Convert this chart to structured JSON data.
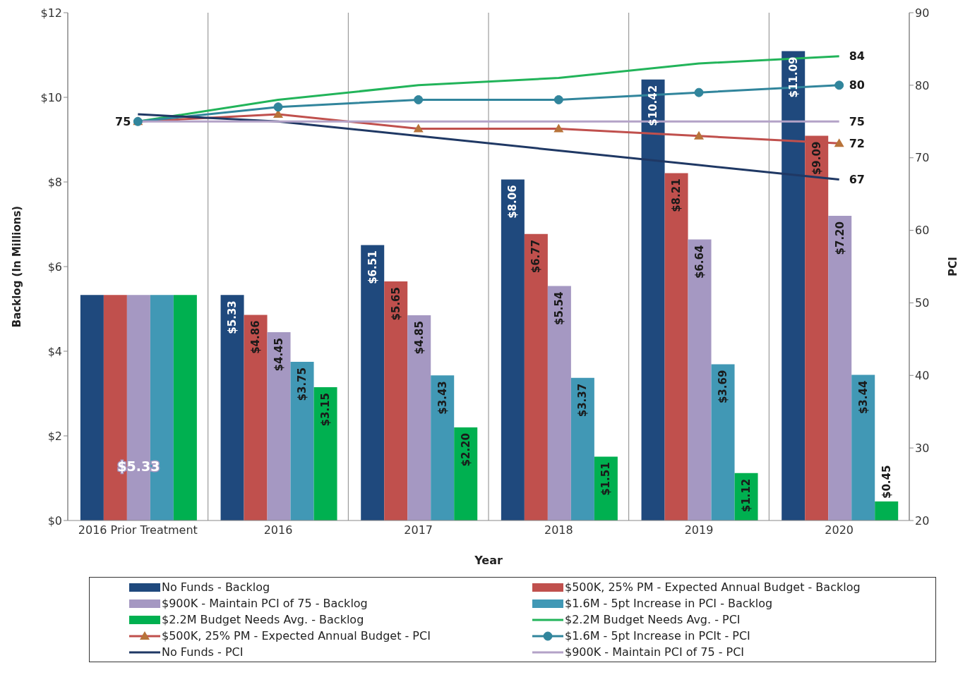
{
  "chart_data": {
    "type": "bar",
    "xlabel": "Year",
    "ylabel": "Backlog  (In Millions)",
    "y2label": "PCI",
    "categories": [
      "2016 Prior Treatment",
      "2016",
      "2017",
      "2018",
      "2019",
      "2020"
    ],
    "ylim": [
      0,
      12
    ],
    "yticks": [
      {
        "value": 0,
        "label": "$0"
      },
      {
        "value": 2,
        "label": "$2"
      },
      {
        "value": 4,
        "label": "$4"
      },
      {
        "value": 6,
        "label": "$6"
      },
      {
        "value": 8,
        "label": "$8"
      },
      {
        "value": 10,
        "label": "$10"
      },
      {
        "value": 12,
        "label": "$12"
      }
    ],
    "y2lim": [
      20,
      90
    ],
    "y2ticks": [
      20,
      30,
      40,
      50,
      60,
      70,
      80,
      90
    ],
    "grid": "x",
    "legend": "bottom",
    "series": [
      {
        "name": "No Funds - Backlog",
        "color": "#1f497d",
        "values": [
          5.33,
          5.33,
          6.51,
          8.06,
          10.42,
          11.09
        ],
        "value_labels": [
          null,
          "$5.33",
          "$6.51",
          "$8.06",
          "$10.42",
          "$11.09"
        ]
      },
      {
        "name": "$500K, 25% PM - Expected Annual Budget - Backlog",
        "color": "#c0504d",
        "values": [
          5.33,
          4.86,
          5.65,
          6.77,
          8.21,
          9.09
        ],
        "value_labels": [
          null,
          "$4.86",
          "$5.65",
          "$6.77",
          "$8.21",
          "$9.09"
        ]
      },
      {
        "name": "$900K - Maintain PCI of 75 - Backlog",
        "color": "#a598c2",
        "values": [
          5.33,
          4.45,
          4.85,
          5.54,
          6.64,
          7.2
        ],
        "value_labels": [
          "$5.33",
          "$4.45",
          "$4.85",
          "$5.54",
          "$6.64",
          "$7.20"
        ]
      },
      {
        "name": "$1.6M - 5pt Increase in PCI - Backlog",
        "color": "#4198b5",
        "values": [
          5.33,
          3.75,
          3.43,
          3.37,
          3.69,
          3.44
        ],
        "value_labels": [
          null,
          "$3.75",
          "$3.43",
          "$3.37",
          "$3.69",
          "$3.44"
        ]
      },
      {
        "name": "$2.2M Budget Needs Avg. - Backlog",
        "color": "#00b050",
        "values": [
          5.33,
          3.15,
          2.2,
          1.51,
          1.12,
          0.45
        ],
        "value_labels": [
          null,
          "$3.15",
          "$2.20",
          "$1.51",
          "$1.12",
          "$0.45"
        ]
      },
      {
        "name": "$2.2M Budget Needs Avg. - PCI",
        "type": "line",
        "axis": "y2",
        "color": "#22b45a",
        "marker": "none",
        "values": [
          75,
          78,
          80,
          81,
          83,
          84
        ],
        "value_labels": [
          "75",
          null,
          null,
          null,
          null,
          "84"
        ]
      },
      {
        "name": "$500K, 25% PM - Expected Annual Budget - PCI",
        "type": "line",
        "axis": "y2",
        "color": "#c0504d",
        "marker": "triangle",
        "values": [
          75,
          76,
          74,
          74,
          73,
          72
        ],
        "value_labels": [
          null,
          null,
          null,
          null,
          null,
          "72"
        ]
      },
      {
        "name": "$1.6M - 5pt Increase in PCIt - PCI",
        "type": "line",
        "axis": "y2",
        "color": "#31859c",
        "marker": "circle",
        "values": [
          75,
          77,
          78,
          78,
          79,
          80
        ],
        "value_labels": [
          null,
          null,
          null,
          null,
          null,
          "80"
        ]
      },
      {
        "name": "No Funds - PCI",
        "type": "line",
        "axis": "y2",
        "color": "#1f3864",
        "marker": "none",
        "values": [
          76,
          75,
          73,
          71,
          69,
          67
        ],
        "value_labels": [
          null,
          null,
          null,
          null,
          null,
          "67"
        ]
      },
      {
        "name": "$900K - Maintain PCI of 75 - PCI",
        "type": "line",
        "axis": "y2",
        "color": "#b3a2c7",
        "marker": "none",
        "values": [
          75,
          75,
          75,
          75,
          75,
          75
        ],
        "value_labels": [
          null,
          null,
          null,
          null,
          null,
          "75"
        ]
      }
    ]
  }
}
